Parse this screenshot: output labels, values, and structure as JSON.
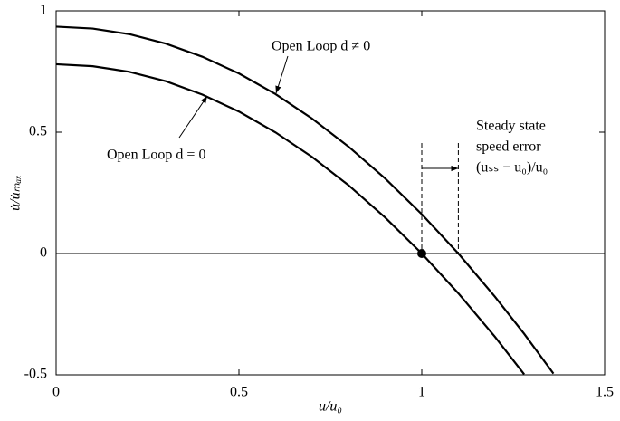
{
  "chart_data": {
    "type": "line",
    "x_label": "u/u₀",
    "y_label": "u̇/u̇ₘₐₓ",
    "x": [
      0,
      0.1,
      0.2,
      0.3,
      0.4,
      0.5,
      0.6,
      0.7,
      0.8,
      0.9,
      1.0,
      1.1,
      1.2,
      1.28,
      1.36
    ],
    "series": [
      {
        "name": "Open Loop d ≠ 0",
        "color": "#000000",
        "values": [
          0.935,
          0.927,
          0.904,
          0.865,
          0.811,
          0.742,
          0.657,
          0.556,
          0.44,
          0.309,
          0.162,
          0,
          -0.178,
          -0.331,
          -0.495
        ]
      },
      {
        "name": "Open Loop d = 0",
        "color": "#000000",
        "values": [
          0.78,
          0.772,
          0.749,
          0.71,
          0.655,
          0.585,
          0.499,
          0.398,
          0.281,
          0.148,
          0,
          -0.164,
          -0.343,
          -0.498,
          null
        ]
      }
    ],
    "xlim": [
      0,
      1.5
    ],
    "xticks": [
      0,
      0.5,
      1,
      1.5
    ],
    "ylim": [
      -0.5,
      1
    ],
    "yticks": [
      -0.5,
      0,
      0.5,
      1
    ],
    "hline": 0,
    "point": {
      "x": 1,
      "y": 0
    },
    "vlines": [
      1,
      1.1
    ],
    "annotations": [
      "Steady state",
      "speed error",
      "(uₛₛ − u₀)/u₀"
    ]
  }
}
